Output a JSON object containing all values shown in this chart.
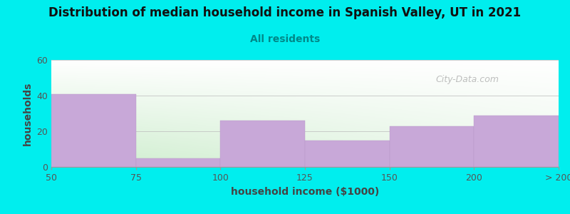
{
  "title": "Distribution of median household income in Spanish Valley, UT in 2021",
  "subtitle": "All residents",
  "xlabel": "household income ($1000)",
  "ylabel": "households",
  "xtick_labels": [
    "50",
    "75",
    "100",
    "125",
    "150",
    "200",
    "> 200"
  ],
  "bar_values": [
    41,
    5,
    26,
    15,
    23,
    29
  ],
  "bar_color": "#C8A8D8",
  "bar_edge_color": "#B898C8",
  "background_color": "#00EEEE",
  "plot_bg_top_right": "#FFFFFF",
  "plot_bg_bottom_left": "#CCEECC",
  "ylim": [
    0,
    60
  ],
  "yticks": [
    0,
    20,
    40,
    60
  ],
  "watermark": "City-Data.com",
  "title_fontsize": 12,
  "subtitle_fontsize": 10,
  "axis_label_fontsize": 10,
  "tick_fontsize": 9,
  "watermark_fontsize": 9
}
